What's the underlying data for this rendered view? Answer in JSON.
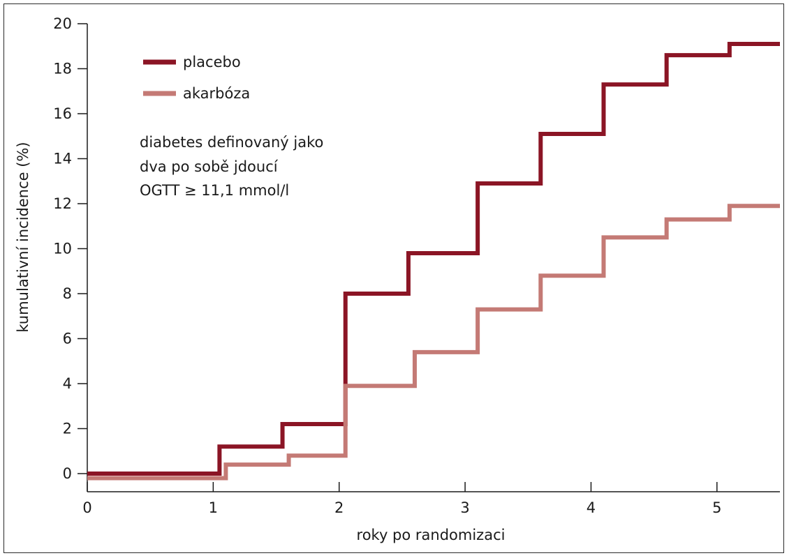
{
  "chart_data": {
    "type": "line",
    "step": true,
    "xlabel": "roky po randomizaci",
    "ylabel": "kumulativní incidence (%)",
    "xlim": [
      0,
      5.5
    ],
    "ylim": [
      0,
      20
    ],
    "x_ticks": [
      0,
      1,
      2,
      3,
      4,
      5
    ],
    "y_ticks": [
      0,
      2,
      4,
      6,
      8,
      10,
      12,
      14,
      16,
      18,
      20
    ],
    "grid": false,
    "legend_position": "top-left",
    "series": [
      {
        "name": "placebo",
        "color": "#8b1525",
        "x": [
          0,
          1.05,
          1.55,
          2.05,
          2.55,
          3.1,
          3.6,
          4.1,
          4.6,
          5.1,
          5.5
        ],
        "y": [
          0,
          1.2,
          2.2,
          8.0,
          9.8,
          12.9,
          15.1,
          17.3,
          18.6,
          19.1,
          19.1
        ]
      },
      {
        "name": "akarbóza",
        "color": "#c47a75",
        "x": [
          0,
          1.1,
          1.6,
          2.05,
          2.6,
          3.1,
          3.6,
          4.1,
          4.6,
          5.1,
          5.5
        ],
        "y": [
          -0.2,
          0.4,
          0.8,
          3.9,
          5.4,
          7.3,
          8.8,
          10.5,
          11.3,
          11.9,
          11.9
        ]
      }
    ]
  },
  "legend": {
    "items": [
      {
        "label": "placebo",
        "color": "#8b1525"
      },
      {
        "label": "akarbóza",
        "color": "#c47a75"
      }
    ]
  },
  "annotation": {
    "lines": [
      "diabetes definovaný jako",
      "dva po sobě jdoucí",
      "OGTT ≥ 11,1 mmol/l"
    ]
  }
}
